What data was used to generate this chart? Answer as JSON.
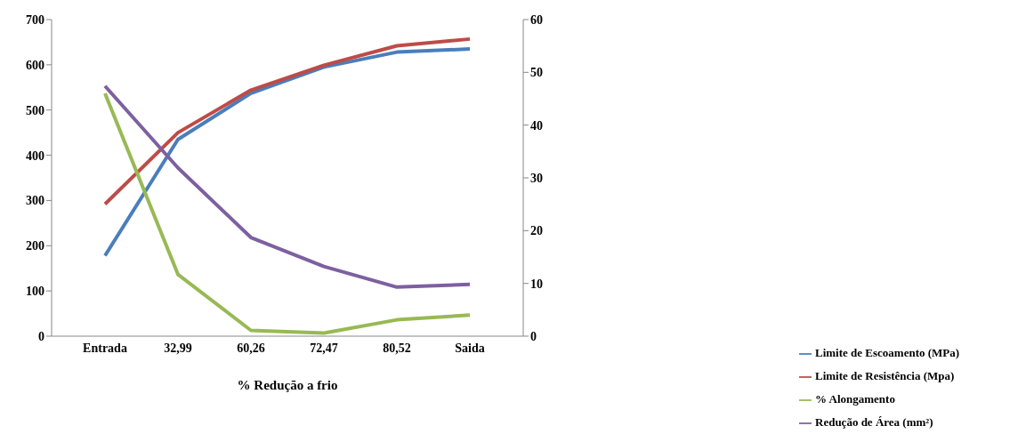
{
  "chart_data": {
    "type": "line",
    "xlabel": "% Redução a frio",
    "categories": [
      "Entrada",
      "32,99",
      "60,26",
      "72,47",
      "80,52",
      "Saida"
    ],
    "series": [
      {
        "name": "Limite de Escoamento (MPa)",
        "color": "#4a7ebb",
        "values": [
          178,
          435,
          537,
          595,
          628,
          635
        ]
      },
      {
        "name": "Limite de Resistência (Mpa)",
        "color": "#be4b48",
        "values": [
          292,
          450,
          544,
          599,
          642,
          657
        ]
      },
      {
        "name": "% Alongamento",
        "color": "#98b954",
        "axis": "y2",
        "values": [
          46.0,
          11.7,
          1.1,
          0.6,
          3.1,
          4.0
        ]
      },
      {
        "name": "Redução de Área (mm²)",
        "color": "#7d60a0",
        "axis": "y2",
        "values": [
          47.4,
          31.9,
          18.7,
          13.2,
          9.3,
          9.8
        ]
      }
    ],
    "ylim": [
      0,
      700
    ],
    "yticks": [
      0,
      100,
      200,
      300,
      400,
      500,
      600,
      700
    ],
    "y2lim": [
      0,
      60
    ],
    "y2ticks": [
      0,
      10,
      20,
      30,
      40,
      50,
      60
    ],
    "grid": false,
    "legend": "bottom right",
    "marker": "none",
    "line_style": "solid"
  }
}
